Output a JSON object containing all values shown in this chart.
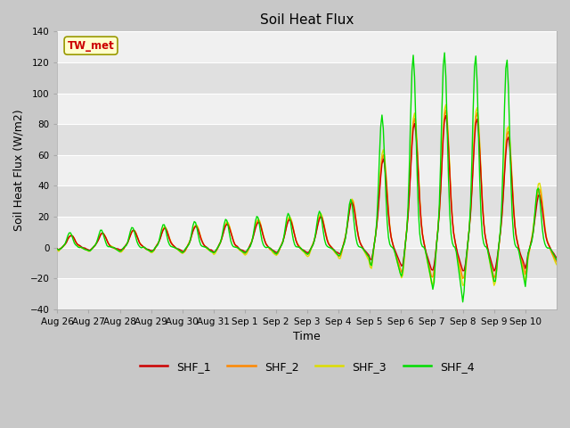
{
  "title": "Soil Heat Flux",
  "ylabel": "Soil Heat Flux (W/m2)",
  "xlabel": "Time",
  "ylim": [
    -40,
    140
  ],
  "yticks": [
    -40,
    -20,
    0,
    20,
    40,
    60,
    80,
    100,
    120,
    140
  ],
  "series_colors": {
    "SHF_1": "#cc0000",
    "SHF_2": "#ff8800",
    "SHF_3": "#dddd00",
    "SHF_4": "#00dd00"
  },
  "annotation_text": "TW_met",
  "annotation_color": "#cc0000",
  "annotation_bg": "#ffffcc",
  "annotation_border": "#999900",
  "xtick_labels": [
    "Aug 26",
    "Aug 27",
    "Aug 28",
    "Aug 29",
    "Aug 30",
    "Aug 31",
    "Sep 1",
    "Sep 2",
    "Sep 3",
    "Sep 4",
    "Sep 5",
    "Sep 6",
    "Sep 7",
    "Sep 8",
    "Sep 9",
    "Sep 10"
  ],
  "n_days": 16,
  "band_colors": [
    "#f0f0f0",
    "#e0e0e0"
  ]
}
